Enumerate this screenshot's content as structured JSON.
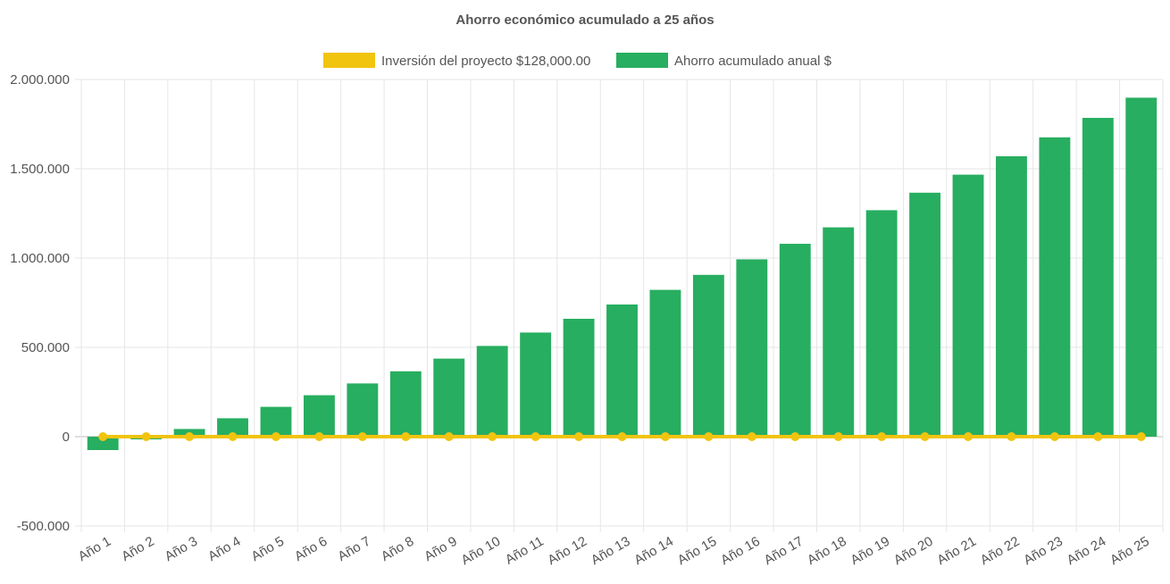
{
  "chart_data": {
    "type": "bar",
    "title": "Ahorro económico acumulado a 25 años",
    "categories": [
      "Año 1",
      "Año 2",
      "Año 3",
      "Año 4",
      "Año 5",
      "Año 6",
      "Año 7",
      "Año 8",
      "Año 9",
      "Año 10",
      "Año 11",
      "Año 12",
      "Año 13",
      "Año 14",
      "Año 15",
      "Año 16",
      "Año 17",
      "Año 18",
      "Año 19",
      "Año 20",
      "Año 21",
      "Año 22",
      "Año 23",
      "Año 24",
      "Año 25"
    ],
    "series": [
      {
        "name": "Inversión del proyecto $128,000.00",
        "kind": "line",
        "color": "#f1c40f",
        "values": [
          0,
          0,
          0,
          0,
          0,
          0,
          0,
          0,
          0,
          0,
          0,
          0,
          0,
          0,
          0,
          0,
          0,
          0,
          0,
          0,
          0,
          0,
          0,
          0,
          0
        ]
      },
      {
        "name": "Ahorro acumulado anual $",
        "kind": "bar",
        "color": "#27ae60",
        "values": [
          -75000,
          -15000,
          43000,
          103000,
          167000,
          232000,
          298000,
          366000,
          437000,
          508000,
          583000,
          660000,
          740000,
          822000,
          906000,
          993000,
          1080000,
          1172000,
          1268000,
          1366000,
          1467000,
          1570000,
          1676000,
          1785000,
          1898000
        ]
      }
    ],
    "ylim": [
      -500000,
      2000000
    ],
    "yticks": [
      "2.000.000",
      "1.500.000",
      "1.000.000",
      "500.000",
      "0",
      "-500.000"
    ],
    "ytick_values": [
      2000000,
      1500000,
      1000000,
      500000,
      0,
      -500000
    ],
    "grid": true,
    "legend_position": "top"
  }
}
